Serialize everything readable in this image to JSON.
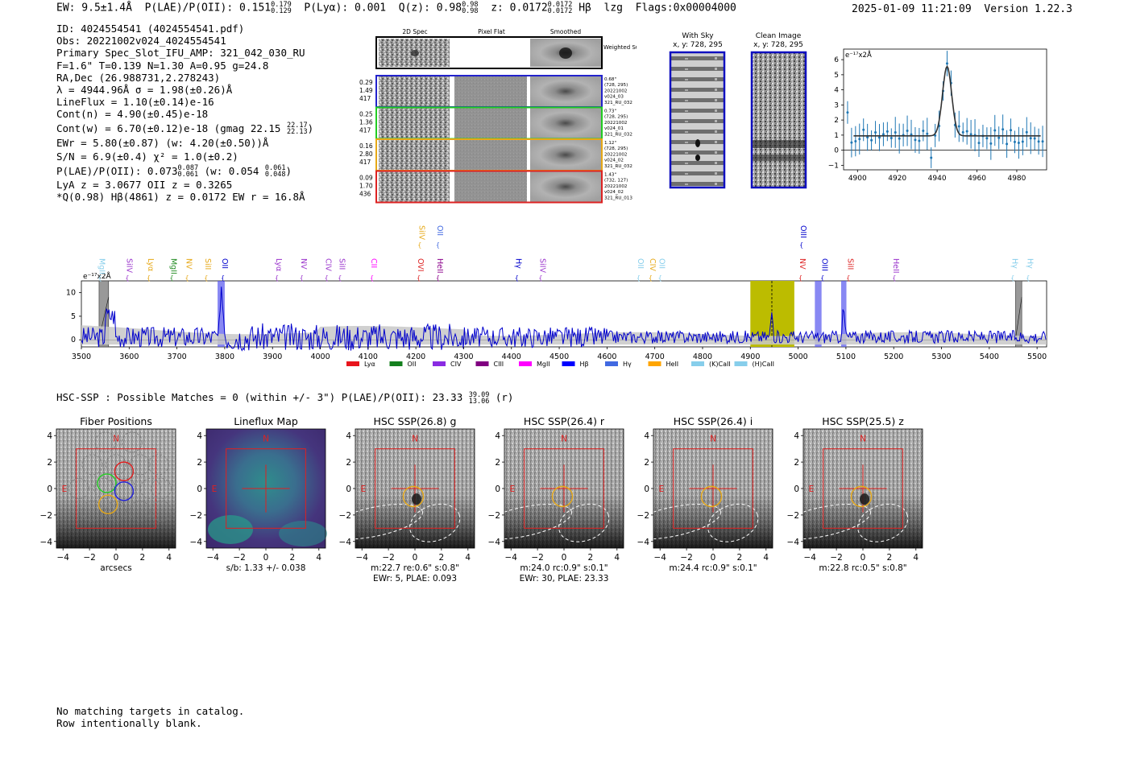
{
  "header": {
    "ew": "EW: 9.5±1.4Å",
    "plae_label": "P(LAE)/P(OII): 0.151",
    "plae_hi": "0.179",
    "plae_lo": "0.129",
    "plya": "P(Lyα): 0.001",
    "q_label": "Q(z): 0.98",
    "q_hi": "0.98",
    "q_lo": "0.98",
    "z_label": "z: 0.0172",
    "z_hi": "0.0172",
    "z_lo": "0.0172",
    "hb": "Hβ",
    "lzg": "lzg",
    "flags": "Flags:0x00004000",
    "datetime": "2025-01-09 11:21:09",
    "version": "Version 1.22.3"
  },
  "info": {
    "id": "ID: 4024554541 (4024554541.pdf)",
    "obs": "Obs: 20221002v024_4024554541",
    "slot": "Primary Spec_Slot_IFU_AMP: 321_042_030_RU",
    "fparams": "F=1.6\"  T=0.139  N=1.30  A=0.95  g=24.8",
    "radec": "RA,Dec (26.988731,2.278243)",
    "lambda": "λ = 4944.96Å  σ = 1.98(±0.26)Å",
    "lineflux": "LineFlux = 1.10(±0.14)e-16",
    "contn": "Cont(n) = 4.90(±0.45)e-18",
    "contw": "Cont(w) = 6.70(±0.12)e-18 (gmag 22.15",
    "gmag_hi": "22.17",
    "gmag_lo": "22.13",
    "contw_close": ")",
    "ewr": "EWr = 5.80(±0.87) (w: 4.20(±0.50))Å",
    "sn": "S/N = 6.9(±0.4)  χ² = 1.0(±0.2)",
    "plae": "P(LAE)/P(OII): 0.073",
    "plae_hi": "0.087",
    "plae_lo": "0.061",
    "plae_w": "(w: 0.054",
    "plae_w_hi": "0.061",
    "plae_w_lo": "0.048",
    "plae_w_close": ")",
    "lya_oii": "LyA z = 3.0677  OII z = 0.3265",
    "qline": "*Q(0.98) Hβ(4861) z = 0.0172  EW r = 16.8Å"
  },
  "cutouts": {
    "col_2d": "2D Spec",
    "col_flat": "Pixel Flat",
    "col_smooth": "Smoothed",
    "weighted": "Weighted Sum",
    "rows": [
      {
        "l1": "0.29",
        "l2": "1.49",
        "l3": "417",
        "r1": "0.68\"",
        "r2": "(728, 295)",
        "r3": "20221002",
        "r4": "v024_03",
        "r5": "321_RU_032",
        "color": "#2222cc"
      },
      {
        "l1": "0.25",
        "l2": "1.36",
        "l3": "417",
        "r1": "0.73\"",
        "r2": "(728, 295)",
        "r3": "20221002",
        "r4": "v024_01",
        "r5": "321_RU_032",
        "color": "#22cc22"
      },
      {
        "l1": "0.16",
        "l2": "2.80",
        "l3": "417",
        "r1": "1.12\"",
        "r2": "(728, 295)",
        "r3": "20221002",
        "r4": "v024_02",
        "r5": "321_RU_032",
        "color": "#e6a817"
      },
      {
        "l1": "0.09",
        "l2": "1.70",
        "l3": "436",
        "r1": "1.43\"",
        "r2": "(732, 127)",
        "r3": "20221002",
        "r4": "v024_02",
        "r5": "321_RU_013",
        "color": "#dd2222"
      }
    ]
  },
  "sky": {
    "with_sky": "With Sky",
    "with_sky_xy": "x, y: 728, 295",
    "clean": "Clean Image",
    "clean_xy": "x, y: 728, 295"
  },
  "line_fit": {
    "unit": "e⁻¹⁷x2Å",
    "xticks": [
      "4900",
      "4920",
      "4940",
      "4960",
      "4980"
    ],
    "yticks": [
      "6",
      "5",
      "4",
      "3",
      "2",
      "1",
      "0",
      "−1"
    ]
  },
  "spectrum": {
    "unit": "e⁻¹⁷x2Å",
    "yticks": [
      "10",
      "5",
      "0"
    ],
    "xticks": [
      "3500",
      "3600",
      "3700",
      "3800",
      "3900",
      "4000",
      "4100",
      "4200",
      "4300",
      "4400",
      "4500",
      "4600",
      "4700",
      "4800",
      "4900",
      "5000",
      "5100",
      "5200",
      "5300",
      "5400",
      "5500"
    ],
    "lines": [
      {
        "n": "MgII",
        "w": 3538,
        "c": "#87ceeb",
        "row": 1
      },
      {
        "n": "SiIV",
        "w": 3595,
        "c": "#9932cc",
        "row": 1
      },
      {
        "n": "Lyα",
        "w": 3640,
        "c": "#e6a817",
        "row": 1
      },
      {
        "n": "MgII",
        "w": 3688,
        "c": "#228b22",
        "row": 1
      },
      {
        "n": "NV",
        "w": 3720,
        "c": "#e6a817",
        "row": 1
      },
      {
        "n": "SiII",
        "w": 3760,
        "c": "#e6a817",
        "row": 1
      },
      {
        "n": "OII",
        "w": 3795,
        "c": "#0000cd",
        "row": 1
      },
      {
        "n": "Lyα",
        "w": 3908,
        "c": "#9932cc",
        "row": 1
      },
      {
        "n": "NV",
        "w": 3960,
        "c": "#9932cc",
        "row": 1
      },
      {
        "n": "CIV",
        "w": 4012,
        "c": "#9932cc",
        "row": 1
      },
      {
        "n": "SiII",
        "w": 4040,
        "c": "#9932cc",
        "row": 1
      },
      {
        "n": "CII",
        "w": 4107,
        "c": "#ff00ff",
        "row": 1
      },
      {
        "n": "OVI",
        "w": 4205,
        "c": "#dd2222",
        "row": 1
      },
      {
        "n": "HeII",
        "w": 4245,
        "c": "#8b008b",
        "row": 1
      },
      {
        "n": "SiIV",
        "w": 4207,
        "c": "#e6a817",
        "row": 0
      },
      {
        "n": "OII",
        "w": 4245,
        "c": "#4169e1",
        "row": 0
      },
      {
        "n": "Hγ",
        "w": 4410,
        "c": "#0000cd",
        "row": 1
      },
      {
        "n": "SiIV",
        "w": 4460,
        "c": "#9932cc",
        "row": 1
      },
      {
        "n": "OII",
        "w": 4665,
        "c": "#87ceeb",
        "row": 1
      },
      {
        "n": "CIV",
        "w": 4690,
        "c": "#e6a817",
        "row": 1
      },
      {
        "n": "OII",
        "w": 4710,
        "c": "#87ceeb",
        "row": 1
      },
      {
        "n": "OIII",
        "w": 5006,
        "c": "#0000cd",
        "row": 0
      },
      {
        "n": "NV",
        "w": 5004,
        "c": "#dd2222",
        "row": 1
      },
      {
        "n": "OIII",
        "w": 5050,
        "c": "#0000cd",
        "row": 1
      },
      {
        "n": "SiII",
        "w": 5104,
        "c": "#dd2222",
        "row": 1
      },
      {
        "n": "HeII",
        "w": 5200,
        "c": "#9932cc",
        "row": 1
      },
      {
        "n": "Hγ",
        "w": 5448,
        "c": "#87ceeb",
        "row": 1
      },
      {
        "n": "Hγ",
        "w": 5480,
        "c": "#87ceeb",
        "row": 1
      }
    ],
    "legend": [
      {
        "n": "Lyα",
        "c": "#e8141c"
      },
      {
        "n": "OII",
        "c": "#14801e"
      },
      {
        "n": "CIV",
        "c": "#8a2be2"
      },
      {
        "n": "CIII",
        "c": "#800080"
      },
      {
        "n": "MgII",
        "c": "#ff00ff"
      },
      {
        "n": "Hβ",
        "c": "#0000ff"
      },
      {
        "n": "Hγ",
        "c": "#4169e1"
      },
      {
        "n": "HeII",
        "c": "#ffa500"
      },
      {
        "n": "(K)CaII",
        "c": "#87ceeb"
      },
      {
        "n": "(H)CaII",
        "c": "#87ceeb"
      }
    ]
  },
  "hsc": {
    "summary": "HSC-SSP : Possible Matches = 0 (within +/- 3\")  P(LAE)/P(OII): 23.33",
    "summary_hi": "39.09",
    "summary_lo": "13.06",
    "summary_band": "(r)",
    "ticks": [
      "4",
      "2",
      "0",
      "−2",
      "−4"
    ],
    "xticks": [
      "−4",
      "−2",
      "0",
      "2",
      "4"
    ],
    "north": "N",
    "east": "E",
    "panels": [
      {
        "title": "Fiber Positions",
        "cap1": "arcsecs",
        "cap2": ""
      },
      {
        "title": "Lineflux Map",
        "cap1": "s/b: 1.33 +/- 0.038",
        "cap2": ""
      },
      {
        "title": "HSC SSP(26.8) g",
        "cap1": "m:22.7  re:0.6\"  s:0.8\"",
        "cap2": "EWr: 5, PLAE: 0.093"
      },
      {
        "title": "HSC SSP(26.4) r",
        "cap1": "m:24.0 rc:0.9\"  s:0.1\"",
        "cap2": "EWr: 30, PLAE: 23.33"
      },
      {
        "title": "HSC SSP(26.4) i",
        "cap1": "m:24.4 rc:0.9\"  s:0.1\"",
        "cap2": ""
      },
      {
        "title": "HSC SSP(25.5) z",
        "cap1": "m:22.8  rc:0.5\"  s:0.8\"",
        "cap2": ""
      }
    ]
  },
  "footer": {
    "line1": "No matching targets in catalog.",
    "line2": "Row intentionally blank."
  }
}
